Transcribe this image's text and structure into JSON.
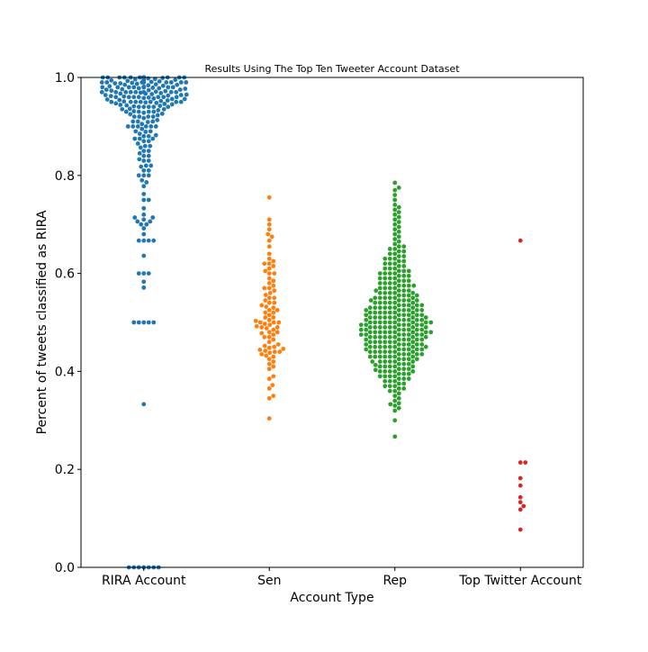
{
  "chart_data": {
    "type": "scatter",
    "subtype": "swarm",
    "title": "Results Using The Top Ten Tweeter Account Dataset",
    "xlabel": "Account Type",
    "ylabel": "Percent of tweets classified as RIRA",
    "categories": [
      "RIRA Account",
      "Sen",
      "Rep",
      "Top Twitter Account"
    ],
    "ylim": [
      0.0,
      1.0
    ],
    "yticks": [
      0.0,
      0.2,
      0.4,
      0.6,
      0.8,
      1.0
    ],
    "ytick_labels": [
      "0.0",
      "0.2",
      "0.4",
      "0.6",
      "0.8",
      "1.0"
    ],
    "grid": false,
    "legend": "none",
    "series": [
      {
        "category": "RIRA Account",
        "color": "#1f77b4",
        "values": [
          0.0,
          0.0,
          0.0,
          0.0,
          0.0,
          0.0,
          0.0,
          0.333,
          0.5,
          0.5,
          0.5,
          0.5,
          0.5,
          0.571,
          0.583,
          0.6,
          0.6,
          0.6,
          0.636,
          0.667,
          0.667,
          0.667,
          0.667,
          0.68,
          0.692,
          0.7,
          0.7,
          0.706,
          0.706,
          0.71,
          0.714,
          0.714,
          0.72,
          0.733,
          0.75,
          0.75,
          0.762,
          0.778,
          0.786,
          0.79,
          0.8,
          0.8,
          0.8,
          0.81,
          0.81,
          0.818,
          0.82,
          0.82,
          0.83,
          0.83,
          0.833,
          0.84,
          0.84,
          0.845,
          0.85,
          0.85,
          0.857,
          0.86,
          0.86,
          0.865,
          0.87,
          0.87,
          0.875,
          0.875,
          0.875,
          0.88,
          0.88,
          0.882,
          0.885,
          0.89,
          0.89,
          0.889,
          0.895,
          0.9,
          0.9,
          0.9,
          0.9,
          0.9,
          0.9,
          0.905,
          0.909,
          0.91,
          0.91,
          0.91,
          0.913,
          0.917,
          0.92,
          0.92,
          0.92,
          0.92,
          0.923,
          0.925,
          0.926,
          0.928,
          0.93,
          0.93,
          0.93,
          0.93,
          0.931,
          0.933,
          0.935,
          0.935,
          0.936,
          0.94,
          0.94,
          0.94,
          0.94,
          0.94,
          0.941,
          0.942,
          0.943,
          0.944,
          0.945,
          0.946,
          0.947,
          0.948,
          0.949,
          0.95,
          0.95,
          0.95,
          0.95,
          0.95,
          0.95,
          0.95,
          0.951,
          0.952,
          0.953,
          0.954,
          0.955,
          0.956,
          0.956,
          0.957,
          0.958,
          0.959,
          0.96,
          0.96,
          0.96,
          0.96,
          0.96,
          0.96,
          0.96,
          0.961,
          0.962,
          0.963,
          0.964,
          0.964,
          0.965,
          0.966,
          0.967,
          0.967,
          0.968,
          0.969,
          0.97,
          0.97,
          0.97,
          0.97,
          0.97,
          0.97,
          0.97,
          0.97,
          0.971,
          0.972,
          0.973,
          0.974,
          0.975,
          0.975,
          0.976,
          0.977,
          0.978,
          0.978,
          0.979,
          0.98,
          0.98,
          0.98,
          0.98,
          0.98,
          0.98,
          0.98,
          0.98,
          0.98,
          0.981,
          0.982,
          0.983,
          0.984,
          0.985,
          0.985,
          0.986,
          0.987,
          0.988,
          0.988,
          0.989,
          0.99,
          0.99,
          0.99,
          0.99,
          0.99,
          0.99,
          0.99,
          0.99,
          0.99,
          0.99,
          0.991,
          0.992,
          0.993,
          0.994,
          0.995,
          0.995,
          0.996,
          0.997,
          0.998,
          0.999,
          1.0,
          1.0,
          1.0,
          1.0,
          1.0,
          1.0,
          1.0,
          1.0,
          1.0,
          1.0,
          1.0,
          1.0,
          1.0,
          1.0,
          1.0,
          1.0,
          1.0,
          1.0,
          1.0,
          1.0,
          1.0,
          1.0,
          1.0,
          1.0,
          1.0,
          1.0,
          1.0,
          1.0,
          1.0,
          1.0,
          1.0,
          1.0,
          1.0,
          1.0,
          1.0,
          1.0,
          1.0,
          1.0,
          1.0,
          1.0,
          1.0
        ]
      },
      {
        "category": "Sen",
        "color": "#ff7f0e",
        "values": [
          0.304,
          0.345,
          0.35,
          0.365,
          0.372,
          0.385,
          0.39,
          0.405,
          0.41,
          0.415,
          0.42,
          0.425,
          0.43,
          0.432,
          0.435,
          0.438,
          0.44,
          0.44,
          0.442,
          0.444,
          0.446,
          0.448,
          0.45,
          0.452,
          0.455,
          0.46,
          0.465,
          0.47,
          0.47,
          0.475,
          0.478,
          0.48,
          0.48,
          0.485,
          0.488,
          0.49,
          0.49,
          0.492,
          0.495,
          0.497,
          0.5,
          0.5,
          0.5,
          0.503,
          0.505,
          0.51,
          0.51,
          0.515,
          0.52,
          0.52,
          0.525,
          0.525,
          0.53,
          0.532,
          0.535,
          0.54,
          0.54,
          0.545,
          0.55,
          0.55,
          0.556,
          0.56,
          0.565,
          0.57,
          0.57,
          0.575,
          0.58,
          0.585,
          0.59,
          0.6,
          0.6,
          0.605,
          0.61,
          0.615,
          0.62,
          0.62,
          0.625,
          0.63,
          0.64,
          0.655,
          0.667,
          0.675,
          0.68,
          0.69,
          0.7,
          0.71,
          0.755
        ]
      },
      {
        "category": "Rep",
        "color": "#2ca02c",
        "values": [
          0.267,
          0.3,
          0.32,
          0.325,
          0.33,
          0.333,
          0.335,
          0.34,
          0.345,
          0.35,
          0.355,
          0.36,
          0.36,
          0.365,
          0.365,
          0.37,
          0.37,
          0.37,
          0.375,
          0.375,
          0.38,
          0.38,
          0.38,
          0.385,
          0.385,
          0.385,
          0.39,
          0.39,
          0.39,
          0.39,
          0.395,
          0.395,
          0.395,
          0.4,
          0.4,
          0.4,
          0.4,
          0.4,
          0.403,
          0.405,
          0.405,
          0.405,
          0.41,
          0.41,
          0.41,
          0.41,
          0.41,
          0.413,
          0.415,
          0.415,
          0.415,
          0.42,
          0.42,
          0.42,
          0.42,
          0.42,
          0.42,
          0.425,
          0.425,
          0.425,
          0.425,
          0.43,
          0.43,
          0.43,
          0.43,
          0.43,
          0.43,
          0.43,
          0.435,
          0.435,
          0.435,
          0.435,
          0.435,
          0.44,
          0.44,
          0.44,
          0.44,
          0.44,
          0.44,
          0.44,
          0.445,
          0.445,
          0.445,
          0.445,
          0.445,
          0.445,
          0.45,
          0.45,
          0.45,
          0.45,
          0.45,
          0.45,
          0.45,
          0.45,
          0.455,
          0.455,
          0.455,
          0.455,
          0.455,
          0.455,
          0.46,
          0.46,
          0.46,
          0.46,
          0.46,
          0.46,
          0.46,
          0.465,
          0.465,
          0.465,
          0.465,
          0.465,
          0.465,
          0.47,
          0.47,
          0.47,
          0.47,
          0.47,
          0.47,
          0.47,
          0.47,
          0.475,
          0.475,
          0.475,
          0.475,
          0.475,
          0.475,
          0.475,
          0.48,
          0.48,
          0.48,
          0.48,
          0.48,
          0.48,
          0.48,
          0.48,
          0.48,
          0.485,
          0.485,
          0.485,
          0.485,
          0.485,
          0.485,
          0.485,
          0.49,
          0.49,
          0.49,
          0.49,
          0.49,
          0.49,
          0.49,
          0.49,
          0.495,
          0.495,
          0.495,
          0.495,
          0.495,
          0.495,
          0.495,
          0.5,
          0.5,
          0.5,
          0.5,
          0.5,
          0.5,
          0.5,
          0.5,
          0.5,
          0.505,
          0.505,
          0.505,
          0.505,
          0.505,
          0.505,
          0.51,
          0.51,
          0.51,
          0.51,
          0.51,
          0.51,
          0.51,
          0.51,
          0.515,
          0.515,
          0.515,
          0.515,
          0.515,
          0.515,
          0.52,
          0.52,
          0.52,
          0.52,
          0.52,
          0.52,
          0.52,
          0.525,
          0.525,
          0.525,
          0.525,
          0.525,
          0.525,
          0.53,
          0.53,
          0.53,
          0.53,
          0.53,
          0.53,
          0.53,
          0.535,
          0.535,
          0.535,
          0.535,
          0.535,
          0.54,
          0.54,
          0.54,
          0.54,
          0.54,
          0.54,
          0.545,
          0.545,
          0.545,
          0.545,
          0.545,
          0.55,
          0.55,
          0.55,
          0.55,
          0.55,
          0.55,
          0.555,
          0.555,
          0.555,
          0.555,
          0.56,
          0.56,
          0.56,
          0.56,
          0.56,
          0.565,
          0.565,
          0.565,
          0.565,
          0.57,
          0.57,
          0.57,
          0.57,
          0.575,
          0.575,
          0.575,
          0.575,
          0.58,
          0.58,
          0.58,
          0.58,
          0.585,
          0.585,
          0.585,
          0.59,
          0.59,
          0.59,
          0.59,
          0.595,
          0.595,
          0.595,
          0.6,
          0.6,
          0.6,
          0.6,
          0.605,
          0.605,
          0.605,
          0.61,
          0.61,
          0.61,
          0.615,
          0.615,
          0.62,
          0.62,
          0.62,
          0.625,
          0.625,
          0.63,
          0.63,
          0.63,
          0.635,
          0.635,
          0.64,
          0.64,
          0.645,
          0.645,
          0.65,
          0.65,
          0.655,
          0.655,
          0.66,
          0.665,
          0.67,
          0.675,
          0.68,
          0.685,
          0.69,
          0.695,
          0.7,
          0.705,
          0.71,
          0.715,
          0.72,
          0.725,
          0.73,
          0.735,
          0.74,
          0.75,
          0.76,
          0.77,
          0.775,
          0.785
        ]
      },
      {
        "category": "Top Twitter Account",
        "color": "#d62728",
        "values": [
          0.077,
          0.118,
          0.125,
          0.133,
          0.143,
          0.167,
          0.182,
          0.214,
          0.214,
          0.667
        ]
      }
    ]
  }
}
